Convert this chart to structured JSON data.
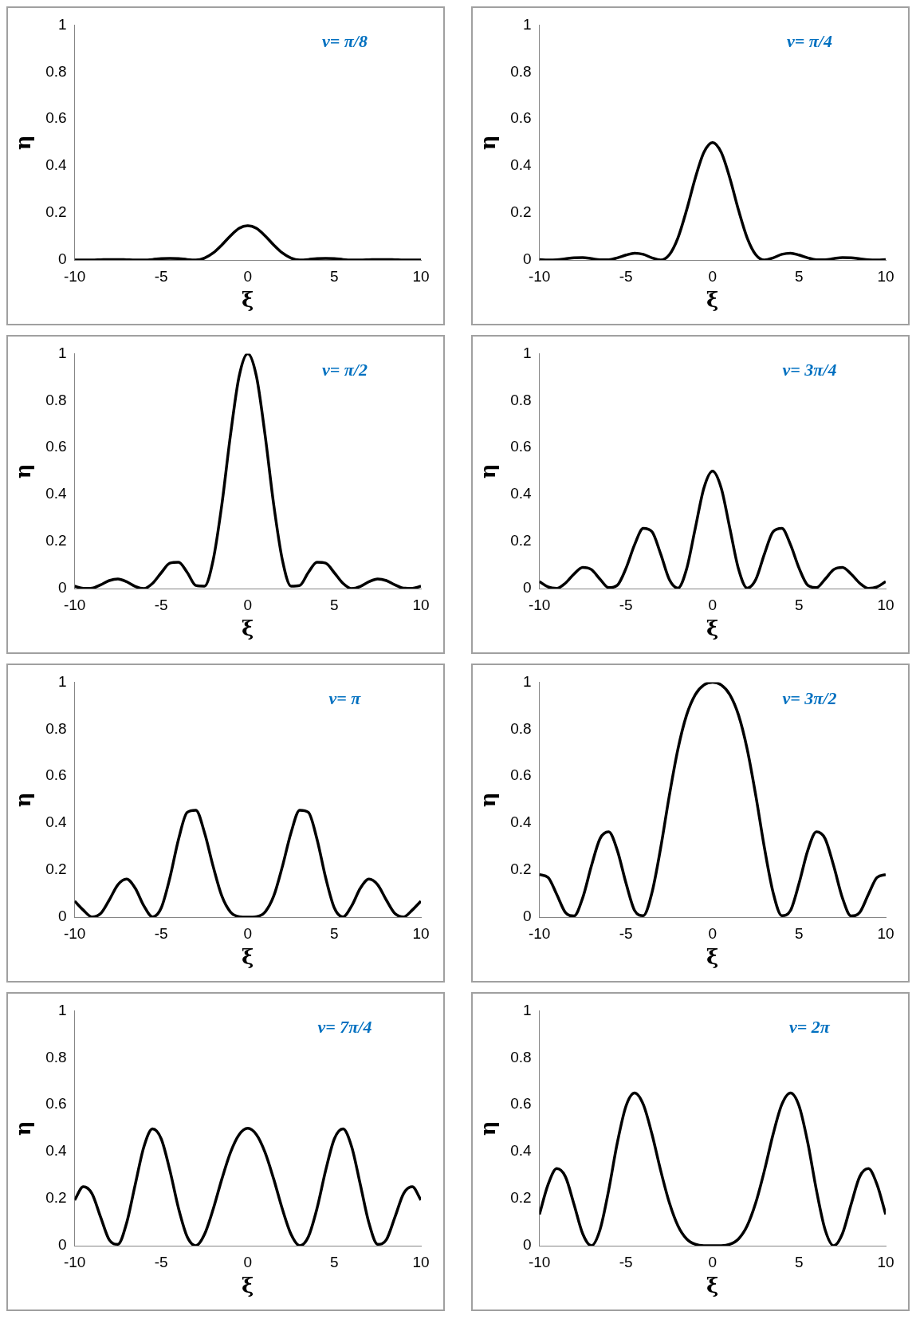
{
  "chart_data": [
    {
      "type": "line",
      "title": "ν= π/8",
      "xlabel": "ξ",
      "ylabel": "η",
      "color": "#000000",
      "xlim": [
        -10,
        10
      ],
      "ylim": [
        0,
        1
      ],
      "xticks": [
        -10,
        -5,
        0,
        5,
        10
      ],
      "yticks": [
        0,
        0.2,
        0.4,
        0.6,
        0.8,
        1
      ],
      "x": [
        -10,
        -9.5,
        -9,
        -8.5,
        -8,
        -7.5,
        -7,
        -6.5,
        -6,
        -5.5,
        -5,
        -4.5,
        -4,
        -3.5,
        -3,
        -2.5,
        -2,
        -1.5,
        -1,
        -0.5,
        0,
        0.5,
        1,
        1.5,
        2,
        2.5,
        3,
        3.5,
        4,
        4.5,
        5,
        5.5,
        6,
        6.5,
        7,
        7.5,
        8,
        8.5,
        9,
        9.5,
        10
      ],
      "values": [
        0,
        0,
        0,
        0.001,
        0.002,
        0.002,
        0.001,
        0,
        0,
        0.002,
        0.006,
        0.007,
        0.006,
        0.002,
        0,
        0.008,
        0.03,
        0.064,
        0.103,
        0.135,
        0.146,
        0.135,
        0.103,
        0.064,
        0.03,
        0.008,
        0,
        0.002,
        0.006,
        0.007,
        0.006,
        0.002,
        0,
        0,
        0.001,
        0.002,
        0.002,
        0.001,
        0,
        0,
        0
      ]
    },
    {
      "type": "line",
      "title": "ν= π/4",
      "xlabel": "ξ",
      "ylabel": "η",
      "color": "#000000",
      "xlim": [
        -10,
        10
      ],
      "ylim": [
        0,
        1
      ],
      "xticks": [
        -10,
        -5,
        0,
        5,
        10
      ],
      "yticks": [
        0,
        0.2,
        0.4,
        0.6,
        0.8,
        1
      ],
      "x": [
        -10,
        -9.5,
        -9,
        -8.5,
        -8,
        -7.5,
        -7,
        -6.5,
        -6,
        -5.5,
        -5,
        -4.5,
        -4,
        -3.5,
        -3,
        -2.5,
        -2,
        -1.5,
        -1,
        -0.5,
        0,
        0.5,
        1,
        1.5,
        2,
        2.5,
        3,
        3.5,
        4,
        4.5,
        5,
        5.5,
        6,
        6.5,
        7,
        7.5,
        8,
        8.5,
        9,
        9.5,
        10
      ],
      "values": [
        0.002,
        0,
        0.001,
        0.005,
        0.009,
        0.01,
        0.006,
        0.001,
        0.001,
        0.009,
        0.021,
        0.029,
        0.024,
        0.009,
        0,
        0.022,
        0.094,
        0.212,
        0.348,
        0.458,
        0.5,
        0.458,
        0.348,
        0.212,
        0.094,
        0.022,
        0,
        0.009,
        0.024,
        0.029,
        0.021,
        0.009,
        0.001,
        0.001,
        0.006,
        0.01,
        0.009,
        0.005,
        0.001,
        0,
        0.002
      ]
    },
    {
      "type": "line",
      "title": "ν= π/2",
      "xlabel": "ξ",
      "ylabel": "η",
      "color": "#000000",
      "xlim": [
        -10,
        10
      ],
      "ylim": [
        0,
        1
      ],
      "xticks": [
        -10,
        -5,
        0,
        5,
        10
      ],
      "yticks": [
        0,
        0.2,
        0.4,
        0.6,
        0.8,
        1
      ],
      "x": [
        -10,
        -9.5,
        -9,
        -8.5,
        -8,
        -7.5,
        -7,
        -6.5,
        -6,
        -5.5,
        -5,
        -4.5,
        -4,
        -3.5,
        -3,
        -2.5,
        -2,
        -1.5,
        -1,
        -0.5,
        0,
        0.5,
        1,
        1.5,
        2,
        2.5,
        3,
        3.5,
        4,
        4.5,
        5,
        5.5,
        6,
        6.5,
        7,
        7.5,
        8,
        8.5,
        9,
        9.5,
        10
      ],
      "values": [
        0.01,
        0.001,
        0.002,
        0.016,
        0.034,
        0.041,
        0.029,
        0.009,
        0,
        0.022,
        0.067,
        0.108,
        0.112,
        0.069,
        0.013,
        0.01,
        0.121,
        0.356,
        0.653,
        0.903,
        1,
        0.903,
        0.653,
        0.356,
        0.121,
        0.01,
        0.013,
        0.069,
        0.112,
        0.108,
        0.067,
        0.022,
        0,
        0.009,
        0.029,
        0.041,
        0.034,
        0.016,
        0.002,
        0.001,
        0.01
      ]
    },
    {
      "type": "line",
      "title": "ν= 3π/4",
      "xlabel": "ξ",
      "ylabel": "η",
      "color": "#000000",
      "xlim": [
        -10,
        10
      ],
      "ylim": [
        0,
        1
      ],
      "xticks": [
        -10,
        -5,
        0,
        5,
        10
      ],
      "yticks": [
        0,
        0.2,
        0.4,
        0.6,
        0.8,
        1
      ],
      "x": [
        -10,
        -9.5,
        -9,
        -8.5,
        -8,
        -7.5,
        -7,
        -6.5,
        -6,
        -5.5,
        -5,
        -4.5,
        -4,
        -3.5,
        -3,
        -2.5,
        -2,
        -1.5,
        -1,
        -0.5,
        0,
        0.5,
        1,
        1.5,
        2,
        2.5,
        3,
        3.5,
        4,
        4.5,
        5,
        5.5,
        6,
        6.5,
        7,
        7.5,
        8,
        8.5,
        9,
        9.5,
        10
      ],
      "values": [
        0.03,
        0.007,
        0.001,
        0.023,
        0.062,
        0.09,
        0.081,
        0.04,
        0.004,
        0.014,
        0.086,
        0.187,
        0.256,
        0.242,
        0.148,
        0.039,
        0.002,
        0.083,
        0.256,
        0.428,
        0.5,
        0.428,
        0.256,
        0.083,
        0.002,
        0.039,
        0.148,
        0.242,
        0.256,
        0.187,
        0.086,
        0.014,
        0.004,
        0.04,
        0.081,
        0.09,
        0.062,
        0.023,
        0.001,
        0.007,
        0.03
      ]
    },
    {
      "type": "line",
      "title": "ν= π",
      "xlabel": "ξ",
      "ylabel": "η",
      "color": "#000000",
      "xlim": [
        -10,
        10
      ],
      "ylim": [
        0,
        1
      ],
      "xticks": [
        -10,
        -5,
        0,
        5,
        10
      ],
      "yticks": [
        0,
        0.2,
        0.4,
        0.6,
        0.8,
        1
      ],
      "x": [
        -10,
        -9.5,
        -9,
        -8.5,
        -8,
        -7.5,
        -7,
        -6.5,
        -6,
        -5.5,
        -5,
        -4.5,
        -4,
        -3.5,
        -3,
        -2.5,
        -2,
        -1.5,
        -1,
        -0.5,
        0,
        0.5,
        1,
        1.5,
        2,
        2.5,
        3,
        3.5,
        4,
        4.5,
        5,
        5.5,
        6,
        6.5,
        7,
        7.5,
        8,
        8.5,
        9,
        9.5,
        10
      ],
      "values": [
        0.068,
        0.03,
        0.001,
        0.015,
        0.073,
        0.138,
        0.162,
        0.123,
        0.048,
        0.001,
        0.039,
        0.167,
        0.331,
        0.446,
        0.455,
        0.36,
        0.216,
        0.09,
        0.022,
        0.002,
        0,
        0.002,
        0.022,
        0.09,
        0.216,
        0.36,
        0.455,
        0.446,
        0.331,
        0.167,
        0.039,
        0.001,
        0.048,
        0.123,
        0.162,
        0.138,
        0.073,
        0.015,
        0.001,
        0.03,
        0.068
      ]
    },
    {
      "type": "line",
      "title": "ν= 3π/2",
      "xlabel": "ξ",
      "ylabel": "η",
      "color": "#000000",
      "xlim": [
        -10,
        10
      ],
      "ylim": [
        0,
        1
      ],
      "xticks": [
        -10,
        -5,
        0,
        5,
        10
      ],
      "yticks": [
        0,
        0.2,
        0.4,
        0.6,
        0.8,
        1
      ],
      "x": [
        -10,
        -9.5,
        -9,
        -8.5,
        -8,
        -7.5,
        -7,
        -6.5,
        -6,
        -5.5,
        -5,
        -4.5,
        -4,
        -3.5,
        -3,
        -2.5,
        -2,
        -1.5,
        -1,
        -0.5,
        0,
        0.5,
        1,
        1.5,
        2,
        2.5,
        3,
        3.5,
        4,
        4.5,
        5,
        5.5,
        6,
        6.5,
        7,
        7.5,
        8,
        8.5,
        9,
        9.5,
        10
      ],
      "values": [
        0.181,
        0.169,
        0.097,
        0.02,
        0.005,
        0.082,
        0.217,
        0.334,
        0.363,
        0.284,
        0.145,
        0.028,
        0.006,
        0.104,
        0.293,
        0.516,
        0.715,
        0.86,
        0.947,
        0.988,
        1,
        0.988,
        0.947,
        0.86,
        0.715,
        0.516,
        0.293,
        0.104,
        0.006,
        0.028,
        0.145,
        0.284,
        0.363,
        0.334,
        0.217,
        0.082,
        0.005,
        0.02,
        0.097,
        0.169,
        0.181
      ]
    },
    {
      "type": "line",
      "title": "ν= 7π/4",
      "xlabel": "ξ",
      "ylabel": "η",
      "color": "#000000",
      "xlim": [
        -10,
        10
      ],
      "ylim": [
        0,
        1
      ],
      "xticks": [
        -10,
        -5,
        0,
        5,
        10
      ],
      "yticks": [
        0,
        0.2,
        0.4,
        0.6,
        0.8,
        1
      ],
      "x": [
        -10,
        -9.5,
        -9,
        -8.5,
        -8,
        -7.5,
        -7,
        -6.5,
        -6,
        -5.5,
        -5,
        -4.5,
        -4,
        -3.5,
        -3,
        -2.5,
        -2,
        -1.5,
        -1,
        -0.5,
        0,
        0.5,
        1,
        1.5,
        2,
        2.5,
        3,
        3.5,
        4,
        4.5,
        5,
        5.5,
        6,
        6.5,
        7,
        7.5,
        8,
        8.5,
        9,
        9.5,
        10
      ],
      "values": [
        0.194,
        0.251,
        0.222,
        0.122,
        0.025,
        0.006,
        0.096,
        0.26,
        0.421,
        0.497,
        0.455,
        0.321,
        0.159,
        0.038,
        0,
        0.048,
        0.155,
        0.283,
        0.397,
        0.473,
        0.5,
        0.473,
        0.397,
        0.283,
        0.155,
        0.048,
        0,
        0.038,
        0.159,
        0.321,
        0.455,
        0.497,
        0.421,
        0.26,
        0.096,
        0.006,
        0.025,
        0.122,
        0.222,
        0.251,
        0.194
      ]
    },
    {
      "type": "line",
      "title": "ν= 2π",
      "xlabel": "ξ",
      "ylabel": "η",
      "color": "#000000",
      "xlim": [
        -10,
        10
      ],
      "ylim": [
        0,
        1
      ],
      "xticks": [
        -10,
        -5,
        0,
        5,
        10
      ],
      "yticks": [
        0,
        0.2,
        0.4,
        0.6,
        0.8,
        1
      ],
      "x": [
        -10,
        -9.5,
        -9,
        -8.5,
        -8,
        -7.5,
        -7,
        -6.5,
        -6,
        -5.5,
        -5,
        -4.5,
        -4,
        -3.5,
        -3,
        -2.5,
        -2,
        -1.5,
        -1,
        -0.5,
        0,
        0.5,
        1,
        1.5,
        2,
        2.5,
        3,
        3.5,
        4,
        4.5,
        5,
        5.5,
        6,
        6.5,
        7,
        7.5,
        8,
        8.5,
        9,
        9.5,
        10
      ],
      "values": [
        0.133,
        0.26,
        0.328,
        0.294,
        0.176,
        0.051,
        0,
        0.068,
        0.236,
        0.438,
        0.594,
        0.65,
        0.601,
        0.475,
        0.321,
        0.184,
        0.085,
        0.029,
        0.006,
        0,
        0,
        0,
        0.006,
        0.029,
        0.085,
        0.184,
        0.321,
        0.475,
        0.601,
        0.65,
        0.594,
        0.438,
        0.236,
        0.068,
        0,
        0.051,
        0.176,
        0.294,
        0.328,
        0.26,
        0.133
      ]
    }
  ]
}
